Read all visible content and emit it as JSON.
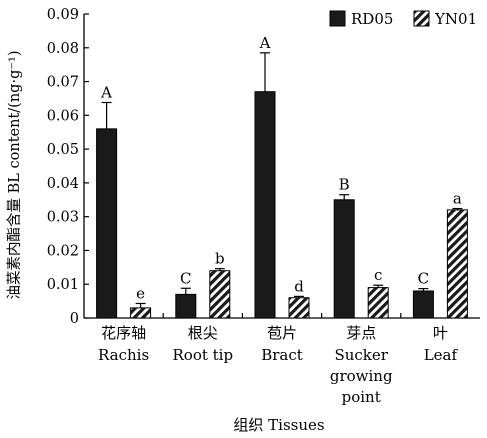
{
  "chart_data": {
    "type": "bar",
    "ylabel": "油菜素内酯含量 BL content/(ng·g⁻¹)",
    "xlabel": "组织 Tissues",
    "ylim": [
      0,
      0.09
    ],
    "yticks": [
      "0",
      "0.01",
      "0.02",
      "0.03",
      "0.04",
      "0.05",
      "0.06",
      "0.07",
      "0.08",
      "0.09"
    ],
    "categories": [
      {
        "zh": "花序轴",
        "en": [
          "Rachis"
        ]
      },
      {
        "zh": "根尖",
        "en": [
          "Root tip"
        ]
      },
      {
        "zh": "苞片",
        "en": [
          "Bract"
        ]
      },
      {
        "zh": "芽点",
        "en": [
          "Sucker",
          "growing",
          "point"
        ]
      },
      {
        "zh": "叶",
        "en": [
          "Leaf"
        ]
      }
    ],
    "series": [
      {
        "name": "RD05",
        "pattern": "solid",
        "color": "#1a1a1a",
        "values": [
          0.056,
          0.007,
          0.067,
          0.035,
          0.008
        ],
        "errors": [
          0.0078,
          0.0018,
          0.0115,
          0.0015,
          0.0007
        ],
        "labels": [
          "A",
          "C",
          "A",
          "B",
          "C"
        ]
      },
      {
        "name": "YN01",
        "pattern": "diagonal-hatch",
        "color": "#1a1a1a",
        "values": [
          0.003,
          0.014,
          0.006,
          0.009,
          0.032
        ],
        "errors": [
          0.0013,
          0.0006,
          0.0004,
          0.0007,
          0.0004
        ],
        "labels": [
          "e",
          "b",
          "d",
          "c",
          "a"
        ]
      }
    ],
    "legend_position": "top-right",
    "grid": false
  }
}
